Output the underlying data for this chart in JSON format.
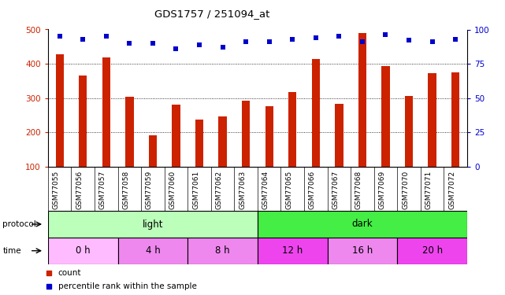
{
  "title": "GDS1757 / 251094_at",
  "samples": [
    "GSM77055",
    "GSM77056",
    "GSM77057",
    "GSM77058",
    "GSM77059",
    "GSM77060",
    "GSM77061",
    "GSM77062",
    "GSM77063",
    "GSM77064",
    "GSM77065",
    "GSM77066",
    "GSM77067",
    "GSM77068",
    "GSM77069",
    "GSM77070",
    "GSM77071",
    "GSM77072"
  ],
  "bar_values": [
    428,
    365,
    418,
    303,
    191,
    282,
    237,
    246,
    293,
    277,
    317,
    413,
    284,
    490,
    393,
    307,
    372,
    375
  ],
  "percentile_values": [
    95,
    93,
    95,
    90,
    90,
    86,
    89,
    87,
    91,
    91,
    93,
    94,
    95,
    91,
    96,
    92,
    91,
    93
  ],
  "bar_color": "#cc2200",
  "dot_color": "#0000cc",
  "ylim_left": [
    100,
    500
  ],
  "ylim_right": [
    0,
    100
  ],
  "yticks_left": [
    100,
    200,
    300,
    400,
    500
  ],
  "yticks_right": [
    0,
    25,
    50,
    75,
    100
  ],
  "grid_values": [
    200,
    300,
    400
  ],
  "protocol_row": [
    {
      "label": "light",
      "start": 0,
      "end": 9,
      "color": "#bbffbb"
    },
    {
      "label": "dark",
      "start": 9,
      "end": 18,
      "color": "#44ee44"
    }
  ],
  "time_row": [
    {
      "label": "0 h",
      "start": 0,
      "end": 3,
      "color": "#ffbbff"
    },
    {
      "label": "4 h",
      "start": 3,
      "end": 6,
      "color": "#ee88ee"
    },
    {
      "label": "8 h",
      "start": 6,
      "end": 9,
      "color": "#ee88ee"
    },
    {
      "label": "12 h",
      "start": 9,
      "end": 12,
      "color": "#ee44ee"
    },
    {
      "label": "16 h",
      "start": 12,
      "end": 15,
      "color": "#ee88ee"
    },
    {
      "label": "20 h",
      "start": 15,
      "end": 18,
      "color": "#ee44ee"
    }
  ],
  "protocol_label": "protocol",
  "time_label": "time",
  "legend_count_color": "#cc2200",
  "legend_dot_color": "#0000cc",
  "background_color": "#ffffff",
  "tick_area_color": "#cccccc"
}
